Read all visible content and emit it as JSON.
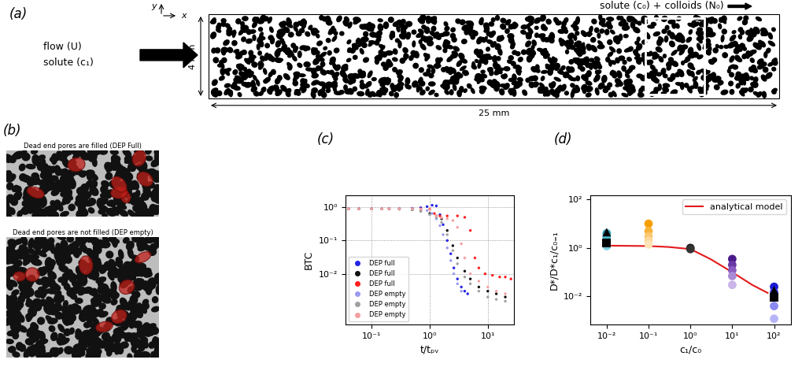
{
  "diagram": {
    "panel_a": {
      "label": "(a)",
      "axis_x": "x",
      "axis_y": "y",
      "flow_label": "flow (U)",
      "solute_label": "solute (c₁)",
      "injection_label": "solute (c₀) + colloids (N₀)",
      "height_label": "4 mm",
      "length_label": "25 mm"
    },
    "panel_b": {
      "label": "(b)",
      "images": [
        {
          "title": "Dead end pores are filled (DEP Full)"
        },
        {
          "title": "Dead end pores are not filled (DEP empty)"
        }
      ]
    }
  },
  "chart_data": [
    {
      "panel_label": "(c)",
      "type": "scatter",
      "x_label": "t/tₚᵥ",
      "y_label": "BTC",
      "log": true,
      "grid": true,
      "legend": "lower left",
      "xlim": [
        0.035,
        28
      ],
      "ylim": [
        0.0003,
        2.3
      ],
      "xticks": [
        {
          "value": 0.1,
          "label": "10⁻¹"
        },
        {
          "value": 1,
          "label": "10⁰"
        },
        {
          "value": 10,
          "label": "10¹"
        }
      ],
      "yticks": [
        {
          "value": 0.01,
          "label": "10⁻²"
        },
        {
          "value": 0.1,
          "label": "10⁻¹"
        },
        {
          "value": 1,
          "label": "10⁰"
        }
      ],
      "series": [
        {
          "name": "DEP full",
          "color": "#2424e6",
          "marker": "circle",
          "x": [
            0.04,
            0.06,
            0.1,
            0.15,
            0.2,
            0.3,
            0.5,
            0.7,
            0.9,
            1.1,
            1.3,
            1.5,
            1.7,
            2.0,
            2.3,
            2.6,
            3.0,
            3.5,
            4.0,
            4.5
          ],
          "values": [
            0.9,
            0.9,
            0.9,
            0.9,
            0.9,
            0.91,
            0.93,
            0.97,
            1.05,
            1.15,
            1.1,
            0.6,
            0.3,
            0.1,
            0.04,
            0.015,
            0.007,
            0.004,
            0.003,
            0.0025
          ]
        },
        {
          "name": "DEP full",
          "color": "#111111",
          "marker": "circle",
          "x": [
            0.04,
            0.06,
            0.1,
            0.15,
            0.2,
            0.3,
            0.5,
            0.7,
            1.0,
            1.3,
            1.6,
            2.0,
            2.5,
            3.0,
            4.0,
            5.0,
            7.0,
            10,
            14,
            20
          ],
          "values": [
            0.9,
            0.9,
            0.9,
            0.9,
            0.9,
            0.88,
            0.85,
            0.8,
            0.65,
            0.55,
            0.45,
            0.2,
            0.07,
            0.03,
            0.012,
            0.007,
            0.004,
            0.003,
            0.0025,
            0.002
          ]
        },
        {
          "name": "DEP full",
          "color": "#ff1f1f",
          "marker": "circle",
          "x": [
            0.04,
            0.06,
            0.1,
            0.15,
            0.2,
            0.3,
            0.5,
            0.7,
            1.0,
            1.2,
            1.5,
            2.0,
            3.0,
            4.0,
            5.0,
            6.0,
            7.0,
            9,
            12,
            16,
            20,
            25
          ],
          "values": [
            0.9,
            0.9,
            0.9,
            0.9,
            0.9,
            0.9,
            0.9,
            0.9,
            0.88,
            0.65,
            0.55,
            0.55,
            0.55,
            0.5,
            0.2,
            0.03,
            0.015,
            0.01,
            0.009,
            0.008,
            0.008,
            0.007
          ]
        },
        {
          "name": "DEP empty",
          "color": "#9a9af0",
          "marker": "circle",
          "x": [
            0.04,
            0.06,
            0.1,
            0.15,
            0.2,
            0.3,
            0.5,
            0.7,
            0.9,
            1.1,
            1.3,
            1.5,
            1.7,
            2.0,
            2.3,
            2.6,
            3.0,
            3.5
          ],
          "values": [
            0.9,
            0.9,
            0.9,
            0.9,
            0.9,
            0.9,
            0.89,
            0.88,
            0.8,
            0.65,
            0.45,
            0.28,
            0.15,
            0.06,
            0.025,
            0.01,
            0.005,
            0.003
          ]
        },
        {
          "name": "DEP empty",
          "color": "#a0a0a0",
          "marker": "circle",
          "x": [
            0.04,
            0.06,
            0.1,
            0.15,
            0.2,
            0.3,
            0.5,
            0.7,
            1.0,
            1.3,
            1.6,
            2.0,
            2.5,
            3.0,
            4.0,
            5.0,
            7.0,
            10,
            14,
            20
          ],
          "values": [
            0.9,
            0.9,
            0.9,
            0.9,
            0.9,
            0.88,
            0.85,
            0.75,
            0.6,
            0.5,
            0.35,
            0.15,
            0.05,
            0.02,
            0.008,
            0.005,
            0.003,
            0.002,
            0.0017,
            0.0015
          ]
        },
        {
          "name": "DEP empty",
          "color": "#f5a0a0",
          "marker": "circle",
          "x": [
            0.04,
            0.06,
            0.1,
            0.15,
            0.2,
            0.3,
            0.5,
            0.7,
            1.0,
            1.3,
            1.6,
            2.0,
            2.5,
            3.0,
            3.5,
            4.0,
            5.0,
            7.0,
            10,
            14,
            20
          ],
          "values": [
            0.9,
            0.9,
            0.9,
            0.9,
            0.9,
            0.9,
            0.9,
            0.88,
            0.85,
            0.55,
            0.48,
            0.45,
            0.4,
            0.25,
            0.08,
            0.03,
            0.01,
            0.006,
            0.004,
            0.003,
            0.0025
          ]
        }
      ]
    },
    {
      "panel_label": "(d)",
      "type": "scatter",
      "x_label": "c₁/c₀",
      "y_label": "D*/D*c₁/c₀₌₁",
      "log": true,
      "grid": false,
      "legend": "upper right",
      "xlim": [
        0.004,
        250
      ],
      "ylim": [
        0.0007,
        150
      ],
      "xticks": [
        {
          "value": 0.01,
          "label": "10⁻²"
        },
        {
          "value": 0.1,
          "label": "10⁻¹"
        },
        {
          "value": 1,
          "label": "10⁰"
        },
        {
          "value": 10,
          "label": "10¹"
        },
        {
          "value": 100,
          "label": "10²"
        }
      ],
      "yticks": [
        {
          "value": 0.01,
          "label": "10⁻²"
        },
        {
          "value": 1,
          "label": "10⁰"
        },
        {
          "value": 100,
          "label": "10²"
        }
      ],
      "series": [
        {
          "type": "scatter",
          "marker": "circle",
          "x": [
            0.01,
            0.01,
            0.01,
            0.01,
            0.01
          ],
          "values": [
            4.0,
            3.0,
            2.2,
            1.6,
            1.2
          ],
          "colors": [
            "#2a9ab0",
            "#3aa7bd",
            "#48b4c8",
            "#5cc0d6",
            "#7fd0e0"
          ]
        },
        {
          "type": "scatter",
          "marker": "circle",
          "x": [
            0.1,
            0.1,
            0.1,
            0.1,
            0.1
          ],
          "values": [
            10,
            5,
            3,
            2,
            1.4
          ],
          "colors": [
            "#f5a000",
            "#f8b33a",
            "#fbc870",
            "#fdd89a",
            "#fde3b5"
          ]
        },
        {
          "type": "scatter",
          "marker": "circle",
          "x": [
            1,
            1
          ],
          "values": [
            1.0,
            0.9
          ],
          "colors": [
            "#111111",
            "#333333"
          ]
        },
        {
          "type": "scatter",
          "marker": "circle",
          "x": [
            10,
            10,
            10,
            10,
            10
          ],
          "values": [
            0.35,
            0.2,
            0.12,
            0.07,
            0.03
          ],
          "colors": [
            "#4b1a8a",
            "#6a3aa5",
            "#8a5cbf",
            "#a98ad6",
            "#c9b5e8"
          ]
        },
        {
          "type": "scatter",
          "marker": "circle",
          "x": [
            100,
            100,
            100,
            100,
            100
          ],
          "values": [
            0.025,
            0.015,
            0.009,
            0.004,
            0.0012
          ],
          "colors": [
            "#1a1ad6",
            "#3d3de6",
            "#6060ee",
            "#8a8af2",
            "#b5b5f7"
          ]
        },
        {
          "type": "scatter",
          "marker": "triangle",
          "x": [
            0.01,
            100
          ],
          "values": [
            4.5,
            0.018
          ],
          "colors": [
            "#000000",
            "#000000"
          ]
        },
        {
          "type": "scatter",
          "marker": "square",
          "x": [
            0.01,
            100
          ],
          "values": [
            1.6,
            0.009
          ],
          "colors": [
            "#000000",
            "#000000"
          ]
        },
        {
          "name": "analytical model",
          "type": "line",
          "color": "#e31a1c",
          "line_style": "solid",
          "x": [
            0.01,
            0.1,
            0.3,
            1,
            3,
            10,
            30,
            70
          ],
          "values": [
            1.25,
            1.2,
            1.1,
            0.9,
            0.35,
            0.1,
            0.03,
            0.014
          ]
        }
      ]
    }
  ]
}
